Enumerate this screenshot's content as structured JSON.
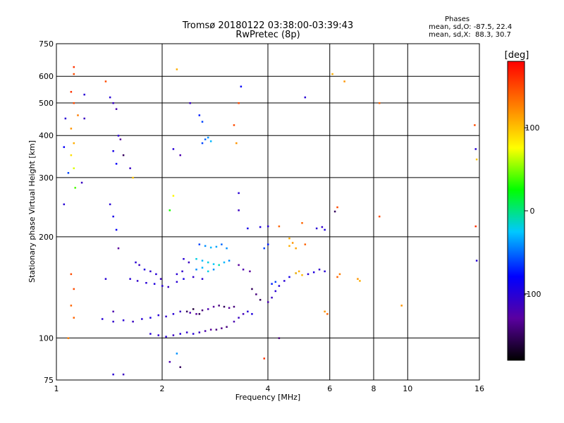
{
  "header": {
    "title": "Tromsø 20180122 03:38:00-03:39:43",
    "subtitle": "RwPretec (8p)",
    "stats_title": "Phases",
    "stats_o": "mean, sd,O: -87.5, 22.4",
    "stats_x": "mean, sd,X:  88.3, 30.7"
  },
  "chart_data": {
    "type": "scatter",
    "title": "Tromsø 20180122 03:38:00-03:39:43",
    "subtitle": "RwPretec (8p)",
    "xlabel": "Frequency [MHz]",
    "ylabel": "Stationary phase Virtual Height [km]",
    "x_scale": "log",
    "y_scale": "log",
    "xlim": [
      1,
      16
    ],
    "ylim": [
      75,
      750
    ],
    "x_ticks": [
      1,
      2,
      4,
      6,
      8,
      10,
      16
    ],
    "y_ticks": [
      75,
      100,
      200,
      300,
      400,
      500,
      600,
      750
    ],
    "grid": true,
    "colorbar": {
      "label": "[deg]",
      "range": [
        -180,
        180
      ],
      "ticks": [
        100,
        0,
        -100
      ],
      "colors": [
        "#000000",
        "#5a00a0",
        "#0000ff",
        "#00c8ff",
        "#00ff00",
        "#ffff00",
        "#ff8000",
        "#ff0000"
      ]
    },
    "series": [
      {
        "points": [
          [
            1.68,
            168,
            -100
          ],
          [
            1.72,
            165,
            -110
          ],
          [
            1.78,
            160,
            -95
          ],
          [
            1.85,
            158,
            -105
          ],
          [
            1.92,
            155,
            -100
          ],
          [
            1.98,
            150,
            -110
          ],
          [
            1.62,
            150,
            -100
          ],
          [
            1.7,
            148,
            -105
          ],
          [
            1.8,
            146,
            -100
          ],
          [
            1.9,
            145,
            -95
          ],
          [
            2.0,
            143,
            -100
          ],
          [
            2.08,
            142,
            -110
          ],
          [
            2.2,
            147,
            -100
          ],
          [
            2.3,
            150,
            -90
          ],
          [
            2.45,
            152,
            -105
          ],
          [
            2.6,
            150,
            -100
          ],
          [
            1.35,
            114,
            -100
          ],
          [
            1.45,
            112,
            -105
          ],
          [
            1.55,
            113,
            -100
          ],
          [
            1.65,
            112,
            -110
          ],
          [
            1.75,
            114,
            -100
          ],
          [
            1.85,
            115,
            -95
          ],
          [
            1.95,
            117,
            -100
          ],
          [
            2.05,
            116,
            -105
          ],
          [
            2.15,
            118,
            -100
          ],
          [
            2.25,
            120,
            -110
          ],
          [
            2.4,
            119,
            -120
          ],
          [
            2.5,
            118,
            -130
          ],
          [
            2.6,
            121,
            -140
          ],
          [
            2.7,
            122,
            -120
          ],
          [
            2.8,
            124,
            -130
          ],
          [
            2.9,
            125,
            -140
          ],
          [
            3.0,
            124,
            -150
          ],
          [
            3.1,
            123,
            -130
          ],
          [
            3.2,
            124,
            -140
          ],
          [
            1.85,
            103,
            -100
          ],
          [
            1.95,
            102,
            -105
          ],
          [
            2.05,
            101,
            -100
          ],
          [
            2.15,
            102,
            -110
          ],
          [
            2.25,
            103,
            -100
          ],
          [
            2.35,
            104,
            -105
          ],
          [
            2.45,
            103,
            -100
          ],
          [
            2.55,
            104,
            -110
          ],
          [
            2.65,
            105,
            -120
          ],
          [
            2.75,
            106,
            -130
          ],
          [
            2.85,
            106,
            -140
          ],
          [
            2.95,
            107,
            -135
          ],
          [
            3.05,
            108,
            -140
          ],
          [
            3.2,
            112,
            -120
          ],
          [
            3.3,
            115,
            -110
          ],
          [
            3.4,
            118,
            -115
          ],
          [
            3.5,
            120,
            -100
          ],
          [
            3.6,
            118,
            -95
          ],
          [
            2.55,
            190,
            -60
          ],
          [
            2.65,
            188,
            -40
          ],
          [
            2.75,
            186,
            -30
          ],
          [
            2.85,
            187,
            -35
          ],
          [
            2.95,
            190,
            -50
          ],
          [
            3.05,
            185,
            -40
          ],
          [
            2.5,
            172,
            -20
          ],
          [
            2.6,
            170,
            -30
          ],
          [
            2.7,
            168,
            -20
          ],
          [
            2.8,
            166,
            -25
          ],
          [
            2.9,
            165,
            -10
          ],
          [
            3.0,
            168,
            -30
          ],
          [
            3.1,
            170,
            -40
          ],
          [
            2.5,
            160,
            -40
          ],
          [
            2.6,
            162,
            -30
          ],
          [
            2.7,
            158,
            -20
          ],
          [
            2.8,
            160,
            -40
          ],
          [
            2.3,
            172,
            -100
          ],
          [
            2.38,
            168,
            -110
          ],
          [
            2.2,
            155,
            -100
          ],
          [
            2.28,
            158,
            -105
          ],
          [
            3.3,
            165,
            -130
          ],
          [
            3.4,
            160,
            -120
          ],
          [
            3.55,
            158,
            -130
          ],
          [
            3.6,
            140,
            -150
          ],
          [
            3.7,
            135,
            -140
          ],
          [
            3.8,
            130,
            -150
          ],
          [
            4.0,
            128,
            -120
          ],
          [
            4.1,
            132,
            -110
          ],
          [
            4.2,
            138,
            -100
          ],
          [
            4.3,
            143,
            -95
          ],
          [
            4.45,
            148,
            -100
          ],
          [
            4.6,
            152,
            -90
          ],
          [
            4.8,
            156,
            -85
          ],
          [
            4.1,
            145,
            -70
          ],
          [
            4.2,
            147,
            -60
          ],
          [
            5.2,
            155,
            -100
          ],
          [
            5.4,
            157,
            -95
          ],
          [
            5.6,
            160,
            -105
          ],
          [
            5.8,
            158,
            -100
          ],
          [
            3.5,
            212,
            -90
          ],
          [
            3.8,
            214,
            -95
          ],
          [
            4.0,
            215,
            -100
          ],
          [
            5.5,
            212,
            -100
          ],
          [
            5.7,
            214,
            -105
          ],
          [
            5.8,
            210,
            -95
          ],
          [
            3.9,
            185,
            -60
          ],
          [
            4.0,
            190,
            -70
          ],
          [
            4.6,
            188,
            110
          ],
          [
            4.7,
            192,
            120
          ],
          [
            4.8,
            185,
            115
          ],
          [
            5.1,
            190,
            140
          ],
          [
            4.8,
            156,
            100
          ],
          [
            4.9,
            158,
            110
          ],
          [
            5.0,
            154,
            105
          ],
          [
            6.3,
            152,
            140
          ],
          [
            6.4,
            155,
            130
          ],
          [
            4.3,
            100,
            -140
          ],
          [
            3.9,
            87,
            160
          ],
          [
            2.1,
            85,
            -120
          ],
          [
            2.25,
            82,
            -150
          ],
          [
            2.2,
            90,
            -40
          ],
          [
            2.35,
            120,
            -150
          ],
          [
            2.45,
            122,
            -160
          ],
          [
            2.55,
            118,
            -155
          ],
          [
            2.6,
            380,
            -60
          ],
          [
            2.65,
            390,
            -50
          ],
          [
            2.7,
            395,
            -40
          ],
          [
            2.75,
            385,
            -30
          ],
          [
            2.6,
            440,
            -60
          ],
          [
            2.55,
            460,
            -70
          ],
          [
            2.4,
            500,
            -110
          ],
          [
            2.15,
            365,
            -100
          ],
          [
            2.25,
            350,
            -120
          ],
          [
            1.1,
            540,
            160
          ],
          [
            1.12,
            500,
            150
          ],
          [
            1.15,
            460,
            130
          ],
          [
            1.1,
            420,
            120
          ],
          [
            1.12,
            380,
            110
          ],
          [
            1.1,
            350,
            90
          ],
          [
            1.12,
            320,
            70
          ],
          [
            1.13,
            280,
            40
          ],
          [
            1.05,
            250,
            -100
          ],
          [
            1.08,
            310,
            -60
          ],
          [
            1.05,
            370,
            -80
          ],
          [
            1.06,
            450,
            -100
          ],
          [
            1.12,
            640,
            160
          ],
          [
            1.12,
            610,
            150
          ],
          [
            1.2,
            530,
            -100
          ],
          [
            1.2,
            450,
            -110
          ],
          [
            1.18,
            290,
            -110
          ],
          [
            1.38,
            580,
            150
          ],
          [
            1.42,
            520,
            -100
          ],
          [
            1.45,
            500,
            -110
          ],
          [
            1.48,
            480,
            -120
          ],
          [
            1.5,
            400,
            -100
          ],
          [
            1.45,
            360,
            -90
          ],
          [
            1.48,
            330,
            -80
          ],
          [
            1.55,
            350,
            -150
          ],
          [
            1.52,
            390,
            -130
          ],
          [
            1.62,
            320,
            -110
          ],
          [
            1.42,
            250,
            -100
          ],
          [
            1.45,
            230,
            -90
          ],
          [
            1.48,
            210,
            -80
          ],
          [
            1.5,
            185,
            -130
          ],
          [
            1.1,
            155,
            150
          ],
          [
            1.12,
            140,
            150
          ],
          [
            1.1,
            125,
            140
          ],
          [
            1.12,
            115,
            140
          ],
          [
            1.08,
            100,
            130
          ],
          [
            1.38,
            150,
            -100
          ],
          [
            1.45,
            120,
            -120
          ],
          [
            1.45,
            78,
            -100
          ],
          [
            1.55,
            78,
            -110
          ],
          [
            1.65,
            300,
            100
          ],
          [
            2.1,
            240,
            30
          ],
          [
            2.15,
            265,
            80
          ],
          [
            2.2,
            630,
            110
          ],
          [
            3.25,
            380,
            120
          ],
          [
            3.2,
            430,
            150
          ],
          [
            3.3,
            270,
            -100
          ],
          [
            3.3,
            240,
            -110
          ],
          [
            3.35,
            560,
            -80
          ],
          [
            3.3,
            500,
            150
          ],
          [
            5.1,
            520,
            -100
          ],
          [
            6.1,
            610,
            110
          ],
          [
            6.6,
            580,
            120
          ],
          [
            6.3,
            245,
            150
          ],
          [
            6.2,
            238,
            -150
          ],
          [
            5.0,
            220,
            140
          ],
          [
            8.3,
            230,
            150
          ],
          [
            8.3,
            500,
            140
          ],
          [
            9.6,
            125,
            120
          ],
          [
            15.5,
            430,
            150
          ],
          [
            15.6,
            365,
            -100
          ],
          [
            15.7,
            340,
            100
          ],
          [
            15.6,
            215,
            160
          ],
          [
            15.7,
            170,
            -100
          ],
          [
            5.8,
            120,
            120
          ],
          [
            5.9,
            118,
            140
          ],
          [
            7.2,
            150,
            120
          ],
          [
            7.3,
            148,
            110
          ],
          [
            4.3,
            215,
            140
          ],
          [
            4.6,
            198,
            110
          ]
        ]
      }
    ]
  }
}
